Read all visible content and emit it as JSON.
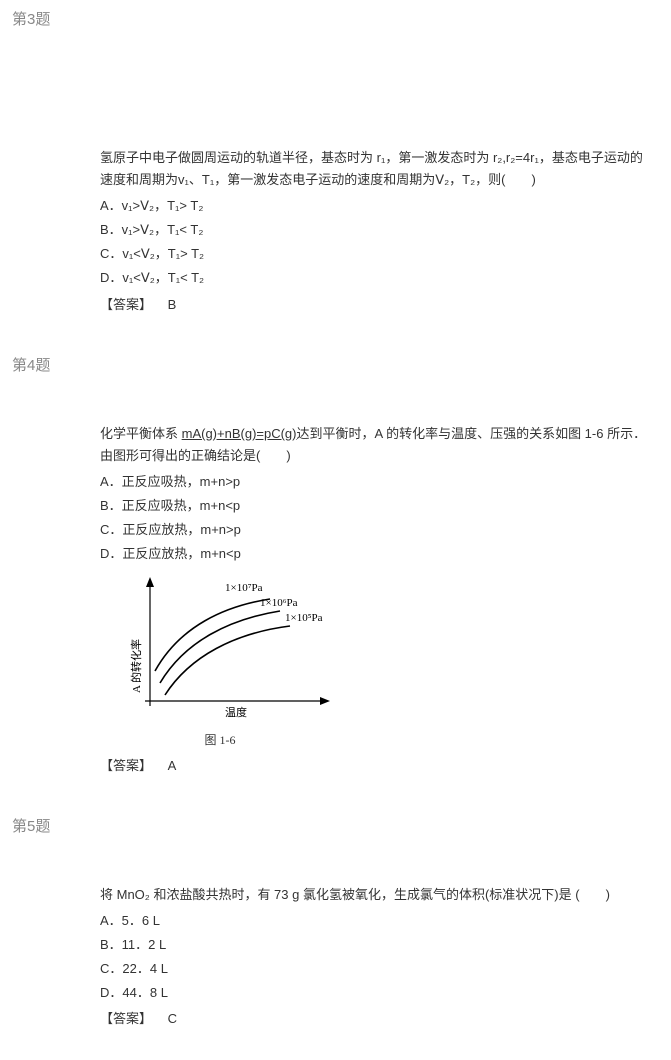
{
  "q3": {
    "header": "第3题",
    "stem": "氢原子中电子做圆周运动的轨道半径，基态时为 r₁，第一激发态时为 r₂,r₂=4r₁，基态电子运动的速度和周期为v₁、T₁，第一激发态电子运动的速度和周期为Ⅴ₂，T₂，则(　　)",
    "optA": "A．v₁>Ⅴ₂，T₁> T₂",
    "optB": "B．v₁>Ⅴ₂，T₁< T₂",
    "optC": "C．v₁<Ⅴ₂，T₁> T₂",
    "optD": "D．v₁<Ⅴ₂，T₁< T₂",
    "answerLabel": "【答案】",
    "answerValue": "B"
  },
  "q4": {
    "header": "第4题",
    "stem_a": "化学平衡体系 ",
    "stem_b": "mA(g)+nB(g)=pC(g)",
    "stem_c": "达到平衡时，A 的转化率与温度、压强的关系如图 1-6 所示．由图形可得出的正确结论是(　　)",
    "optA": "A．正反应吸热，m+n>p",
    "optB": "B．正反应吸热，m+n<p",
    "optC": "C．正反应放热，m+n>p",
    "optD": "D．正反应放热，m+n<p",
    "chart": {
      "curve_labels": [
        "1×10⁷Pa",
        "1×10⁶Pa",
        "1×10⁵Pa"
      ],
      "y_axis_label": "A 的转化率",
      "x_axis_label": "温度",
      "caption": "图 1-6",
      "stroke": "#000000",
      "label_fontsize": 11,
      "curves": [
        "M 25 100 C 50 55, 95 35, 140 28",
        "M 30 112 C 55 70, 100 48, 150 40",
        "M 35 124 C 60 85, 105 62, 160 55"
      ]
    },
    "answerLabel": "【答案】",
    "answerValue": "A"
  },
  "q5": {
    "header": "第5题",
    "stem": "将 MnO₂ 和浓盐酸共热时，有 73 g 氯化氢被氧化，生成氯气的体积(标准状况下)是 (　　)",
    "optA": "A．5．6 L",
    "optB": "B．11．2 L",
    "optC": "C．22．4 L",
    "optD": "D．44．8 L",
    "answerLabel": "【答案】",
    "answerValue": "C"
  }
}
